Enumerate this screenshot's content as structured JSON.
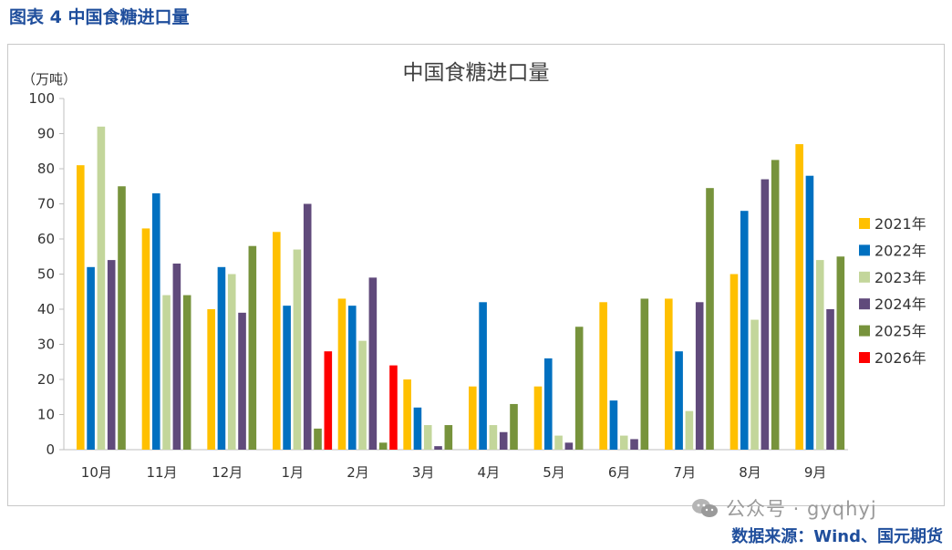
{
  "header": {
    "figure_title": "图表 4  中国食糖进口量"
  },
  "footer": {
    "watermark_text": "公众号 · gyqhyj",
    "source": "数据来源：Wind、国元期货"
  },
  "chart_data": {
    "type": "bar",
    "title": "中国食糖进口量",
    "ylabel": "（万吨）",
    "xlabel": "",
    "ylim": [
      0,
      100
    ],
    "yticks": [
      0,
      10,
      20,
      30,
      40,
      50,
      60,
      70,
      80,
      90,
      100
    ],
    "grid": false,
    "legend_position": "right",
    "categories": [
      "10月",
      "11月",
      "12月",
      "1月",
      "2月",
      "3月",
      "4月",
      "5月",
      "6月",
      "7月",
      "8月",
      "9月"
    ],
    "series": [
      {
        "name": "2021年",
        "color": "#ffc000",
        "values": [
          81,
          63,
          40,
          62,
          43,
          20,
          18,
          18,
          42,
          43,
          50,
          87
        ]
      },
      {
        "name": "2022年",
        "color": "#0070c0",
        "values": [
          52,
          73,
          52,
          41,
          41,
          12,
          42,
          26,
          14,
          28,
          68,
          78
        ]
      },
      {
        "name": "2023年",
        "color": "#c3d69b",
        "values": [
          92,
          44,
          50,
          57,
          31,
          7,
          7,
          4,
          4,
          11,
          37,
          54
        ]
      },
      {
        "name": "2024年",
        "color": "#604a7b",
        "values": [
          54,
          53,
          39,
          70,
          49,
          1,
          5,
          2,
          3,
          42,
          77,
          40
        ]
      },
      {
        "name": "2025年",
        "color": "#77933c",
        "values": [
          75,
          44,
          58,
          6,
          2,
          7,
          13,
          35,
          43,
          74.5,
          82.5,
          55
        ]
      },
      {
        "name": "2026年",
        "color": "#ff0000",
        "values": [
          null,
          null,
          null,
          28,
          24,
          null,
          null,
          null,
          null,
          null,
          null,
          null
        ]
      }
    ]
  }
}
